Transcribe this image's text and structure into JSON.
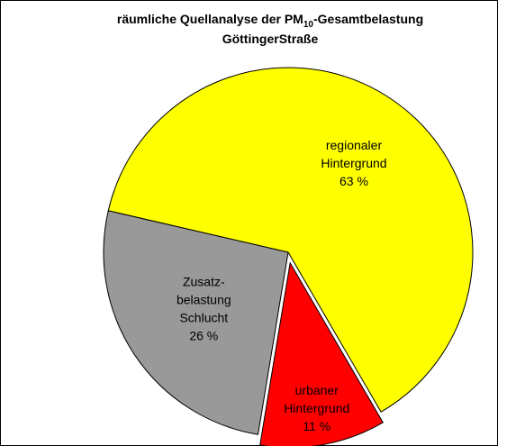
{
  "chart_data": {
    "type": "pie",
    "title": [
      "räumliche Quellanalyse der PM",
      "10",
      "-Gesamtbelastung"
    ],
    "subtitle": "GöttingerStraße",
    "categories": [
      [
        "regionaler",
        "Hintergrund"
      ],
      [
        "urbaner",
        "Hintergrund"
      ],
      [
        "Zusatz-",
        "belastung",
        "Schlucht"
      ]
    ],
    "values": [
      63,
      11,
      26
    ],
    "value_labels": [
      "63 %",
      "11 %",
      "26 %"
    ],
    "colors": [
      "#ffff00",
      "#ff0000",
      "#999999"
    ]
  }
}
